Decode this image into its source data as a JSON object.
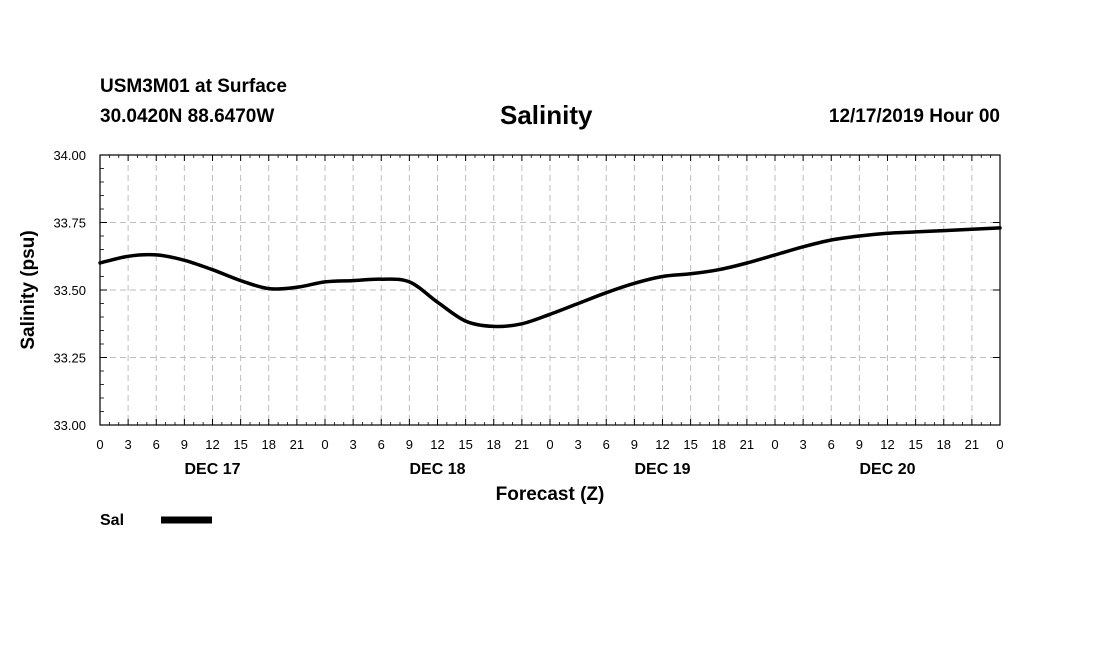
{
  "header": {
    "station": "USM3M01 at Surface",
    "coords": "30.0420N 88.6470W",
    "title": "Salinity",
    "timestamp": "12/17/2019 Hour 00"
  },
  "colors": {
    "line": "#000000",
    "grid": "#bdbdbd",
    "frame": "#000000"
  },
  "chart_data": {
    "type": "line",
    "title": "Salinity",
    "xlabel": "Forecast (Z)",
    "ylabel": "Salinity (psu)",
    "xlim": [
      0,
      96
    ],
    "ylim": [
      33.0,
      34.0
    ],
    "yticks": [
      33.0,
      33.25,
      33.5,
      33.75,
      34.0
    ],
    "ytick_labels": [
      "33.00",
      "33.25",
      "33.50",
      "33.75",
      "34.00"
    ],
    "xticks": [
      0,
      3,
      6,
      9,
      12,
      15,
      18,
      21,
      24,
      27,
      30,
      33,
      36,
      39,
      42,
      45,
      48,
      51,
      54,
      57,
      60,
      63,
      66,
      69,
      72,
      75,
      78,
      81,
      84,
      87,
      90,
      93,
      96
    ],
    "xtick_labels": [
      "0",
      "3",
      "6",
      "9",
      "12",
      "15",
      "18",
      "21",
      "0",
      "3",
      "6",
      "9",
      "12",
      "15",
      "18",
      "21",
      "0",
      "3",
      "6",
      "9",
      "12",
      "15",
      "18",
      "21",
      "0",
      "3",
      "6",
      "9",
      "12",
      "15",
      "18",
      "21",
      "0"
    ],
    "day_labels": [
      {
        "label": "DEC 17",
        "hour": 12
      },
      {
        "label": "DEC 18",
        "hour": 36
      },
      {
        "label": "DEC 19",
        "hour": 60
      },
      {
        "label": "DEC 20",
        "hour": 84
      }
    ],
    "grid": true,
    "legend_position": "bottom-left",
    "series": [
      {
        "name": "Sal",
        "x": [
          0,
          3,
          6,
          9,
          12,
          15,
          18,
          21,
          24,
          27,
          30,
          33,
          36,
          39,
          42,
          45,
          48,
          51,
          54,
          57,
          60,
          63,
          66,
          69,
          72,
          75,
          78,
          81,
          84,
          87,
          90,
          93,
          96
        ],
        "values": [
          33.6,
          33.625,
          33.63,
          33.61,
          33.575,
          33.535,
          33.505,
          33.51,
          33.53,
          33.535,
          33.54,
          33.53,
          33.455,
          33.385,
          33.365,
          33.375,
          33.41,
          33.45,
          33.49,
          33.525,
          33.55,
          33.56,
          33.575,
          33.6,
          33.63,
          33.66,
          33.685,
          33.7,
          33.71,
          33.715,
          33.72,
          33.725,
          33.73
        ]
      }
    ]
  }
}
